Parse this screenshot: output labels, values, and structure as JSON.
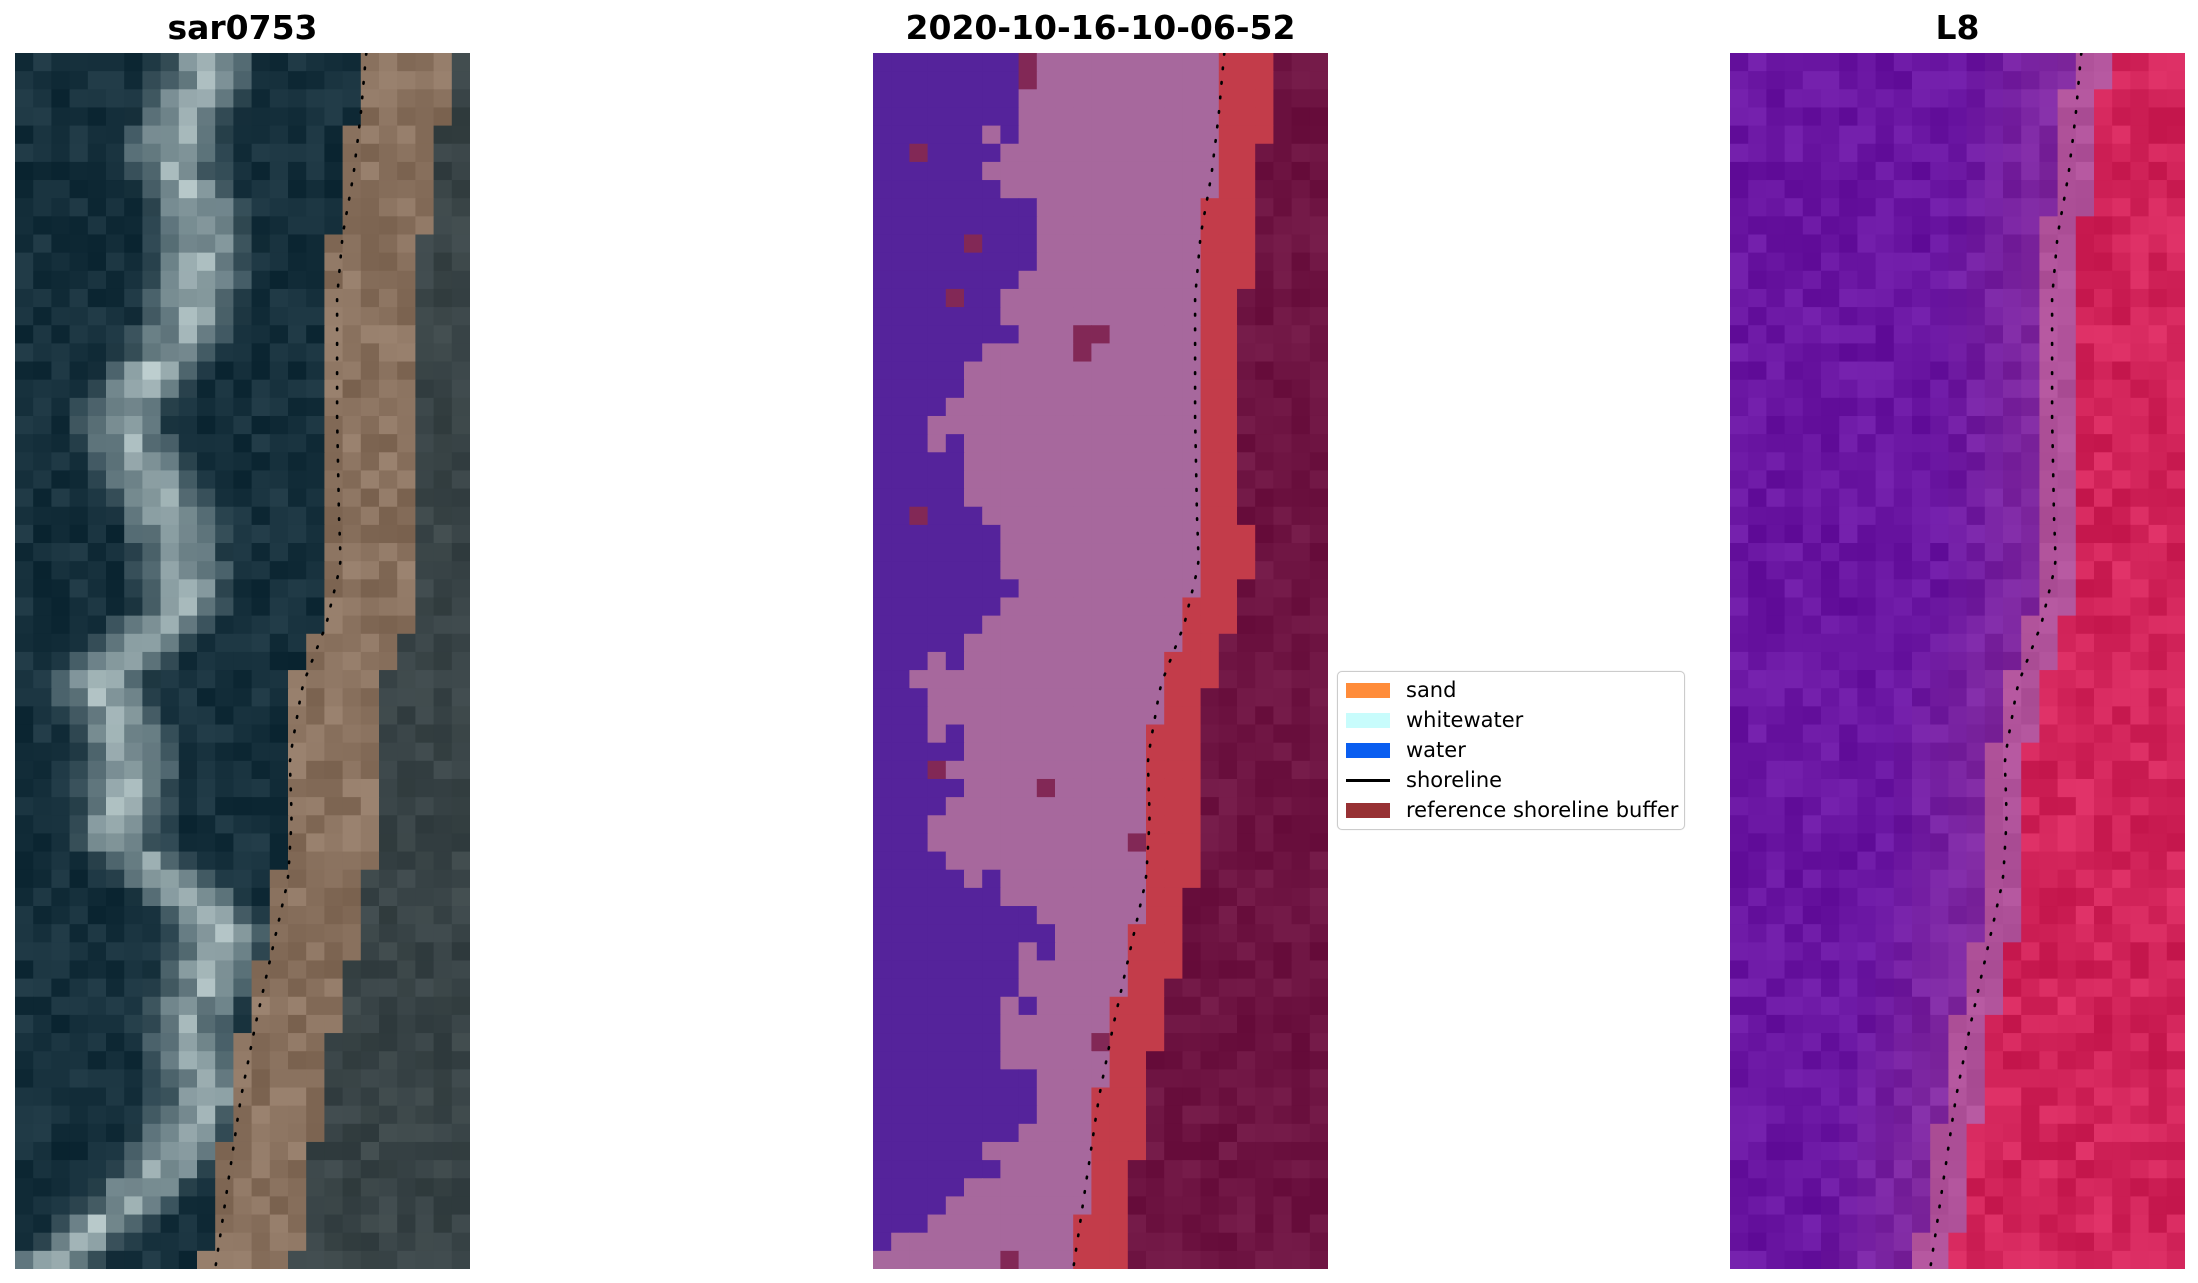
{
  "panels": [
    {
      "title": "sar0753"
    },
    {
      "title": "2020-10-16-10-06-52"
    },
    {
      "title": "L8"
    }
  ],
  "legend": {
    "items": [
      {
        "label": "sand",
        "kind": "patch",
        "color": "#ff8c3a"
      },
      {
        "label": "whitewater",
        "kind": "patch",
        "color": "#c8fcfc"
      },
      {
        "label": "water",
        "kind": "patch",
        "color": "#0a5ef0"
      },
      {
        "label": "shoreline",
        "kind": "line",
        "color": "#000000"
      },
      {
        "label": "reference shoreline buffer",
        "kind": "patch",
        "color": "#973134"
      }
    ]
  },
  "colors": {
    "classified_water": "#55239b",
    "classified_sand": "#a7689d",
    "classified_buffer": "#c33c4a",
    "classified_land": "#6e1442",
    "ocean_dark": "#16303c",
    "whitewater_rgb": "#c8d8d8",
    "beach_rgb": "#8a725f",
    "mndwi_water": "#6a16a2",
    "mndwi_land": "#d2245a"
  },
  "chart_data": {
    "type": "image",
    "shoreline_style": "dotted black line",
    "grid": false,
    "axes_visible": false,
    "legend_placement": "center, between second and third panel"
  }
}
